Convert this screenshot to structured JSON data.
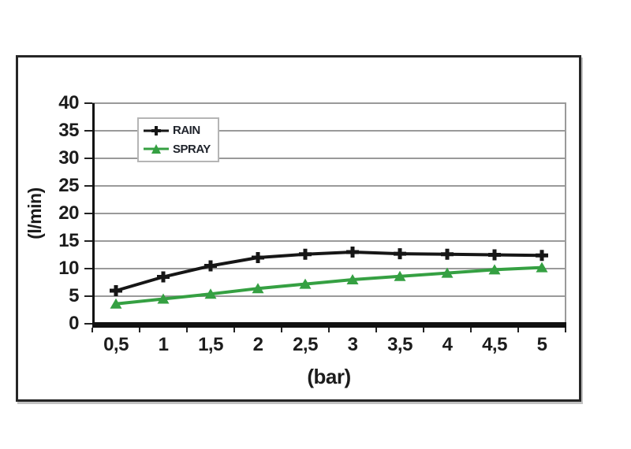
{
  "chart_data": {
    "type": "line",
    "x": [
      0.5,
      1,
      1.5,
      2,
      2.5,
      3,
      3.5,
      4,
      4.5,
      5
    ],
    "x_tick_labels": [
      "0,5",
      "1",
      "1,5",
      "2",
      "2,5",
      "3",
      "3,5",
      "4",
      "4,5",
      "5"
    ],
    "y_ticks": [
      0,
      5,
      10,
      15,
      20,
      25,
      30,
      35,
      40
    ],
    "ylim": [
      0,
      40
    ],
    "xlabel": "(bar)",
    "ylabel": "(l/min)",
    "grid": true,
    "legend_position": "top-left-inside",
    "series": [
      {
        "name": "RAIN",
        "marker": "plus",
        "color": "#161616",
        "values": [
          6.0,
          8.5,
          10.5,
          12.0,
          12.6,
          13.0,
          12.7,
          12.6,
          12.5,
          12.4
        ]
      },
      {
        "name": "SPRAY",
        "marker": "triangle",
        "color": "#35a042",
        "values": [
          3.6,
          4.5,
          5.4,
          6.4,
          7.2,
          8.0,
          8.6,
          9.2,
          9.8,
          10.2
        ]
      }
    ],
    "colors": {
      "gridline": "#9a9a9a",
      "axis": "#111111",
      "text": "#1c1c1c"
    }
  }
}
